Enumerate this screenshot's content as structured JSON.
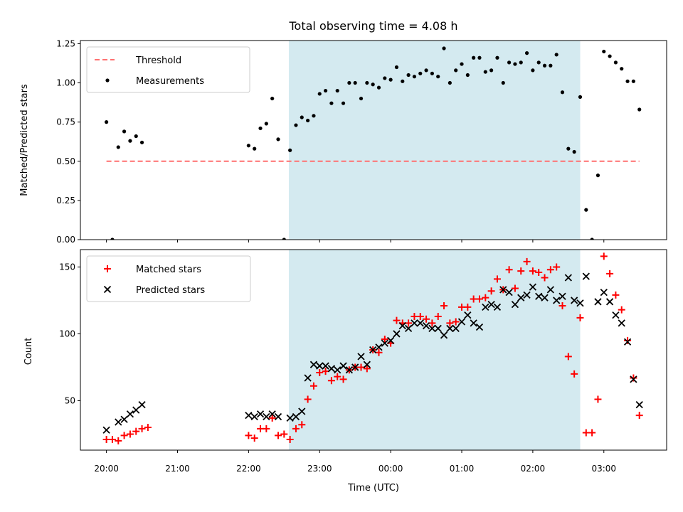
{
  "chart_data": [
    {
      "type": "scatter",
      "title": "Total observing time = 4.08 h",
      "ylabel": "Matched/Predicted stars",
      "xlim": [
        "19:38",
        "03:53"
      ],
      "ylim": [
        0,
        1.27
      ],
      "yticks": [
        0.0,
        0.25,
        0.5,
        0.75,
        1.0,
        1.25
      ],
      "ytick_labels": [
        "0.00",
        "0.25",
        "0.50",
        "0.75",
        "1.00",
        "1.25"
      ],
      "shaded_span": {
        "start": "22:34",
        "end": "02:40",
        "color": "#d4eaf0"
      },
      "legend": {
        "placement": "upper left",
        "entries": [
          "Threshold",
          "Measurements"
        ]
      },
      "threshold": {
        "name": "Threshold",
        "value": 0.5,
        "x_range": [
          "20:00",
          "03:30"
        ],
        "color": "#ff7070",
        "style": "dashed"
      },
      "series": [
        {
          "name": "Measurements",
          "color": "#000000",
          "marker": "dot",
          "points": [
            [
              "20:00",
              0.75
            ],
            [
              "20:05",
              0.0
            ],
            [
              "20:10",
              0.59
            ],
            [
              "20:15",
              0.69
            ],
            [
              "20:20",
              0.63
            ],
            [
              "20:25",
              0.66
            ],
            [
              "20:30",
              0.62
            ],
            [
              "22:00",
              0.6
            ],
            [
              "22:05",
              0.58
            ],
            [
              "22:10",
              0.71
            ],
            [
              "22:15",
              0.74
            ],
            [
              "22:20",
              0.9
            ],
            [
              "22:25",
              0.64
            ],
            [
              "22:30",
              0.0
            ],
            [
              "22:35",
              0.57
            ],
            [
              "22:40",
              0.73
            ],
            [
              "22:45",
              0.78
            ],
            [
              "22:50",
              0.76
            ],
            [
              "22:55",
              0.79
            ],
            [
              "23:00",
              0.93
            ],
            [
              "23:05",
              0.95
            ],
            [
              "23:10",
              0.87
            ],
            [
              "23:15",
              0.95
            ],
            [
              "23:20",
              0.87
            ],
            [
              "23:25",
              1.0
            ],
            [
              "23:30",
              1.0
            ],
            [
              "23:35",
              0.9
            ],
            [
              "23:40",
              1.0
            ],
            [
              "23:45",
              0.99
            ],
            [
              "23:50",
              0.97
            ],
            [
              "23:55",
              1.03
            ],
            [
              "00:00",
              1.02
            ],
            [
              "00:05",
              1.1
            ],
            [
              "00:10",
              1.01
            ],
            [
              "00:15",
              1.05
            ],
            [
              "00:20",
              1.04
            ],
            [
              "00:25",
              1.06
            ],
            [
              "00:30",
              1.08
            ],
            [
              "00:35",
              1.06
            ],
            [
              "00:40",
              1.04
            ],
            [
              "00:45",
              1.22
            ],
            [
              "00:50",
              1.0
            ],
            [
              "00:55",
              1.08
            ],
            [
              "01:00",
              1.12
            ],
            [
              "01:05",
              1.05
            ],
            [
              "01:10",
              1.16
            ],
            [
              "01:15",
              1.16
            ],
            [
              "01:20",
              1.07
            ],
            [
              "01:25",
              1.08
            ],
            [
              "01:30",
              1.16
            ],
            [
              "01:35",
              1.0
            ],
            [
              "01:40",
              1.13
            ],
            [
              "01:45",
              1.12
            ],
            [
              "01:50",
              1.13
            ],
            [
              "01:55",
              1.19
            ],
            [
              "02:00",
              1.08
            ],
            [
              "02:05",
              1.13
            ],
            [
              "02:10",
              1.11
            ],
            [
              "02:15",
              1.11
            ],
            [
              "02:20",
              1.18
            ],
            [
              "02:25",
              0.94
            ],
            [
              "02:30",
              0.58
            ],
            [
              "02:35",
              0.56
            ],
            [
              "02:40",
              0.91
            ],
            [
              "02:45",
              0.19
            ],
            [
              "02:50",
              0.0
            ],
            [
              "02:55",
              0.41
            ],
            [
              "03:00",
              1.2
            ],
            [
              "03:05",
              1.17
            ],
            [
              "03:10",
              1.13
            ],
            [
              "03:15",
              1.09
            ],
            [
              "03:20",
              1.01
            ],
            [
              "03:25",
              1.01
            ],
            [
              "03:30",
              0.83
            ]
          ]
        }
      ]
    },
    {
      "type": "scatter",
      "xlabel": "Time (UTC)",
      "ylabel": "Count",
      "xlim": [
        "19:38",
        "03:53"
      ],
      "ylim": [
        13,
        163
      ],
      "yticks": [
        50,
        100,
        150
      ],
      "xticks": [
        "20:00",
        "21:00",
        "22:00",
        "23:00",
        "00:00",
        "01:00",
        "02:00",
        "03:00"
      ],
      "shaded_span": {
        "start": "22:34",
        "end": "02:40",
        "color": "#d4eaf0"
      },
      "legend": {
        "placement": "upper left",
        "entries": [
          "Matched stars",
          "Predicted stars"
        ]
      },
      "series": [
        {
          "name": "Matched stars",
          "color": "#ff0000",
          "marker": "plus",
          "points": [
            [
              "20:00",
              21
            ],
            [
              "20:05",
              21
            ],
            [
              "20:10",
              20
            ],
            [
              "20:15",
              24
            ],
            [
              "20:20",
              25
            ],
            [
              "20:25",
              27
            ],
            [
              "20:30",
              29
            ],
            [
              "20:35",
              30
            ],
            [
              "22:00",
              24
            ],
            [
              "22:05",
              22
            ],
            [
              "22:10",
              29
            ],
            [
              "22:15",
              29
            ],
            [
              "22:20",
              37
            ],
            [
              "22:25",
              24
            ],
            [
              "22:30",
              25
            ],
            [
              "22:35",
              21
            ],
            [
              "22:40",
              29
            ],
            [
              "22:45",
              32
            ],
            [
              "22:50",
              51
            ],
            [
              "22:55",
              61
            ],
            [
              "23:00",
              71
            ],
            [
              "23:05",
              72
            ],
            [
              "23:10",
              65
            ],
            [
              "23:15",
              68
            ],
            [
              "23:20",
              66
            ],
            [
              "23:25",
              73
            ],
            [
              "23:30",
              75
            ],
            [
              "23:35",
              75
            ],
            [
              "23:40",
              74
            ],
            [
              "23:45",
              88
            ],
            [
              "23:50",
              86
            ],
            [
              "23:55",
              96
            ],
            [
              "00:00",
              93
            ],
            [
              "00:05",
              110
            ],
            [
              "00:10",
              108
            ],
            [
              "00:15",
              108
            ],
            [
              "00:20",
              113
            ],
            [
              "00:25",
              113
            ],
            [
              "00:30",
              111
            ],
            [
              "00:35",
              108
            ],
            [
              "00:40",
              113
            ],
            [
              "00:45",
              121
            ],
            [
              "00:50",
              108
            ],
            [
              "00:55",
              109
            ],
            [
              "01:00",
              120
            ],
            [
              "01:05",
              120
            ],
            [
              "01:10",
              126
            ],
            [
              "01:15",
              126
            ],
            [
              "01:20",
              127
            ],
            [
              "01:25",
              132
            ],
            [
              "01:30",
              141
            ],
            [
              "01:35",
              133
            ],
            [
              "01:40",
              148
            ],
            [
              "01:45",
              134
            ],
            [
              "01:50",
              147
            ],
            [
              "01:55",
              154
            ],
            [
              "02:00",
              147
            ],
            [
              "02:05",
              146
            ],
            [
              "02:10",
              142
            ],
            [
              "02:15",
              148
            ],
            [
              "02:20",
              150
            ],
            [
              "02:25",
              121
            ],
            [
              "02:30",
              83
            ],
            [
              "02:35",
              70
            ],
            [
              "02:40",
              112
            ],
            [
              "02:45",
              26
            ],
            [
              "02:50",
              26
            ],
            [
              "02:55",
              51
            ],
            [
              "03:00",
              158
            ],
            [
              "03:05",
              145
            ],
            [
              "03:10",
              129
            ],
            [
              "03:15",
              118
            ],
            [
              "03:20",
              95
            ],
            [
              "03:25",
              67
            ],
            [
              "03:30",
              39
            ]
          ]
        },
        {
          "name": "Predicted stars",
          "color": "#000000",
          "marker": "x",
          "points": [
            [
              "20:00",
              28
            ],
            [
              "20:10",
              34
            ],
            [
              "20:15",
              36
            ],
            [
              "20:20",
              40
            ],
            [
              "20:25",
              43
            ],
            [
              "20:30",
              47
            ],
            [
              "22:00",
              39
            ],
            [
              "22:05",
              38
            ],
            [
              "22:10",
              40
            ],
            [
              "22:15",
              38
            ],
            [
              "22:20",
              40
            ],
            [
              "22:25",
              38
            ],
            [
              "22:35",
              37
            ],
            [
              "22:40",
              38
            ],
            [
              "22:45",
              42
            ],
            [
              "22:50",
              67
            ],
            [
              "22:55",
              77
            ],
            [
              "23:00",
              76
            ],
            [
              "23:05",
              76
            ],
            [
              "23:10",
              74
            ],
            [
              "23:15",
              73
            ],
            [
              "23:20",
              76
            ],
            [
              "23:25",
              73
            ],
            [
              "23:30",
              75
            ],
            [
              "23:35",
              83
            ],
            [
              "23:40",
              77
            ],
            [
              "23:45",
              88
            ],
            [
              "23:50",
              90
            ],
            [
              "23:55",
              93
            ],
            [
              "00:00",
              95
            ],
            [
              "00:05",
              100
            ],
            [
              "00:10",
              106
            ],
            [
              "00:15",
              104
            ],
            [
              "00:20",
              108
            ],
            [
              "00:25",
              108
            ],
            [
              "00:30",
              106
            ],
            [
              "00:35",
              104
            ],
            [
              "00:40",
              104
            ],
            [
              "00:45",
              99
            ],
            [
              "00:50",
              104
            ],
            [
              "00:55",
              104
            ],
            [
              "01:00",
              109
            ],
            [
              "01:05",
              114
            ],
            [
              "01:10",
              108
            ],
            [
              "01:15",
              105
            ],
            [
              "01:20",
              120
            ],
            [
              "01:25",
              122
            ],
            [
              "01:30",
              120
            ],
            [
              "01:35",
              133
            ],
            [
              "01:40",
              131
            ],
            [
              "01:45",
              122
            ],
            [
              "01:50",
              127
            ],
            [
              "01:55",
              129
            ],
            [
              "02:00",
              135
            ],
            [
              "02:05",
              128
            ],
            [
              "02:10",
              127
            ],
            [
              "02:15",
              133
            ],
            [
              "02:20",
              125
            ],
            [
              "02:25",
              128
            ],
            [
              "02:30",
              142
            ],
            [
              "02:35",
              125
            ],
            [
              "02:40",
              123
            ],
            [
              "02:45",
              143
            ],
            [
              "02:55",
              124
            ],
            [
              "03:00",
              131
            ],
            [
              "03:05",
              124
            ],
            [
              "03:10",
              114
            ],
            [
              "03:15",
              108
            ],
            [
              "03:20",
              94
            ],
            [
              "03:25",
              66
            ],
            [
              "03:30",
              47
            ]
          ]
        }
      ]
    }
  ]
}
